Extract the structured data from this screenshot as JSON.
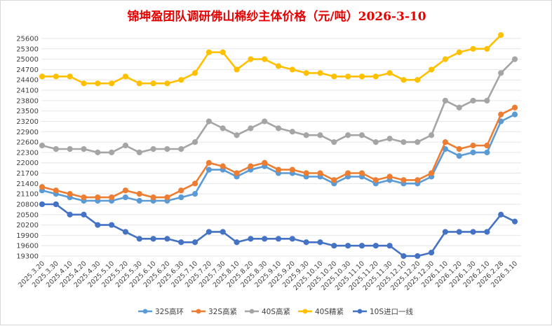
{
  "chart_data": {
    "type": "line",
    "title": "锦坤盈团队调研佛山棉纱主体价格（元/吨）2026-3-10",
    "xlabel": "",
    "ylabel": "",
    "ylim": [
      19300,
      25700
    ],
    "yticks": [
      19300,
      19600,
      19900,
      20200,
      20500,
      20800,
      21100,
      21400,
      21700,
      22000,
      22300,
      22600,
      22900,
      23200,
      23500,
      23800,
      24100,
      24400,
      24700,
      25000,
      25300,
      25600
    ],
    "grid": true,
    "legend_position": "bottom",
    "categories": [
      "2025.3.20",
      "2025.3.30",
      "2025.4.10",
      "2025.4.20",
      "2025.4.30",
      "2025.5.10",
      "2025.5.20",
      "2025.5.30",
      "2025.6.10",
      "2025.6.20",
      "2025.6.30",
      "2025.7.10",
      "2025.7.20",
      "2025.7.30",
      "2025.8.10",
      "2025.8.20",
      "2025.8.30",
      "2025.9.10",
      "2025.9.20",
      "2025.9.30",
      "2025.10.10",
      "2025.10.20",
      "2025.10.30",
      "2025.11.10",
      "2025.11.20",
      "2025.11.30",
      "2025.12.10",
      "2025.12.20",
      "2025.12.30",
      "2026.1.10",
      "2026.1.20",
      "2026.1.30",
      "2026.2.10",
      "2026.2.28",
      "2026.3.10"
    ],
    "series": [
      {
        "name": "32S高环",
        "color": "#5b9bd5",
        "values": [
          21200,
          21100,
          21000,
          20900,
          20900,
          20900,
          21000,
          20900,
          20900,
          20900,
          21000,
          21100,
          21800,
          21800,
          21600,
          21800,
          21900,
          21700,
          21700,
          21600,
          21600,
          21400,
          21600,
          21600,
          21400,
          21500,
          21400,
          21400,
          21600,
          22400,
          22200,
          22300,
          22300,
          23200,
          23400
        ]
      },
      {
        "name": "32S高紧",
        "color": "#ed7d31",
        "values": [
          21300,
          21200,
          21100,
          21000,
          21000,
          21000,
          21200,
          21100,
          21000,
          21000,
          21200,
          21400,
          22000,
          21900,
          21700,
          21900,
          22000,
          21800,
          21800,
          21700,
          21700,
          21500,
          21700,
          21700,
          21500,
          21600,
          21500,
          21500,
          21700,
          22600,
          22400,
          22500,
          22500,
          23400,
          23600
        ]
      },
      {
        "name": "40S高紧",
        "color": "#a5a5a5",
        "values": [
          22500,
          22400,
          22400,
          22400,
          22300,
          22300,
          22500,
          22300,
          22400,
          22400,
          22400,
          22600,
          23200,
          23000,
          22800,
          23000,
          23200,
          23000,
          22900,
          22800,
          22800,
          22600,
          22800,
          22800,
          22600,
          22700,
          22600,
          22600,
          22800,
          23800,
          23600,
          23800,
          23800,
          24600,
          25000
        ]
      },
      {
        "name": "40S精紧",
        "color": "#ffc000",
        "values": [
          24500,
          24500,
          24500,
          24300,
          24300,
          24300,
          24500,
          24300,
          24300,
          24300,
          24400,
          24600,
          25200,
          25200,
          24700,
          25000,
          25000,
          24800,
          24700,
          24600,
          24600,
          24500,
          24500,
          24500,
          24500,
          24600,
          24400,
          24400,
          24700,
          25000,
          25200,
          25300,
          25300,
          25700,
          null
        ]
      },
      {
        "name": "10S进口一线",
        "color": "#4472c4",
        "values": [
          20800,
          20800,
          20500,
          20500,
          20200,
          20200,
          20000,
          19800,
          19800,
          19800,
          19700,
          19700,
          20000,
          20000,
          19700,
          19800,
          19800,
          19800,
          19800,
          19700,
          19700,
          19600,
          19600,
          19600,
          19600,
          19600,
          19300,
          19300,
          19400,
          20000,
          20000,
          20000,
          20000,
          20500,
          20300
        ]
      }
    ]
  }
}
